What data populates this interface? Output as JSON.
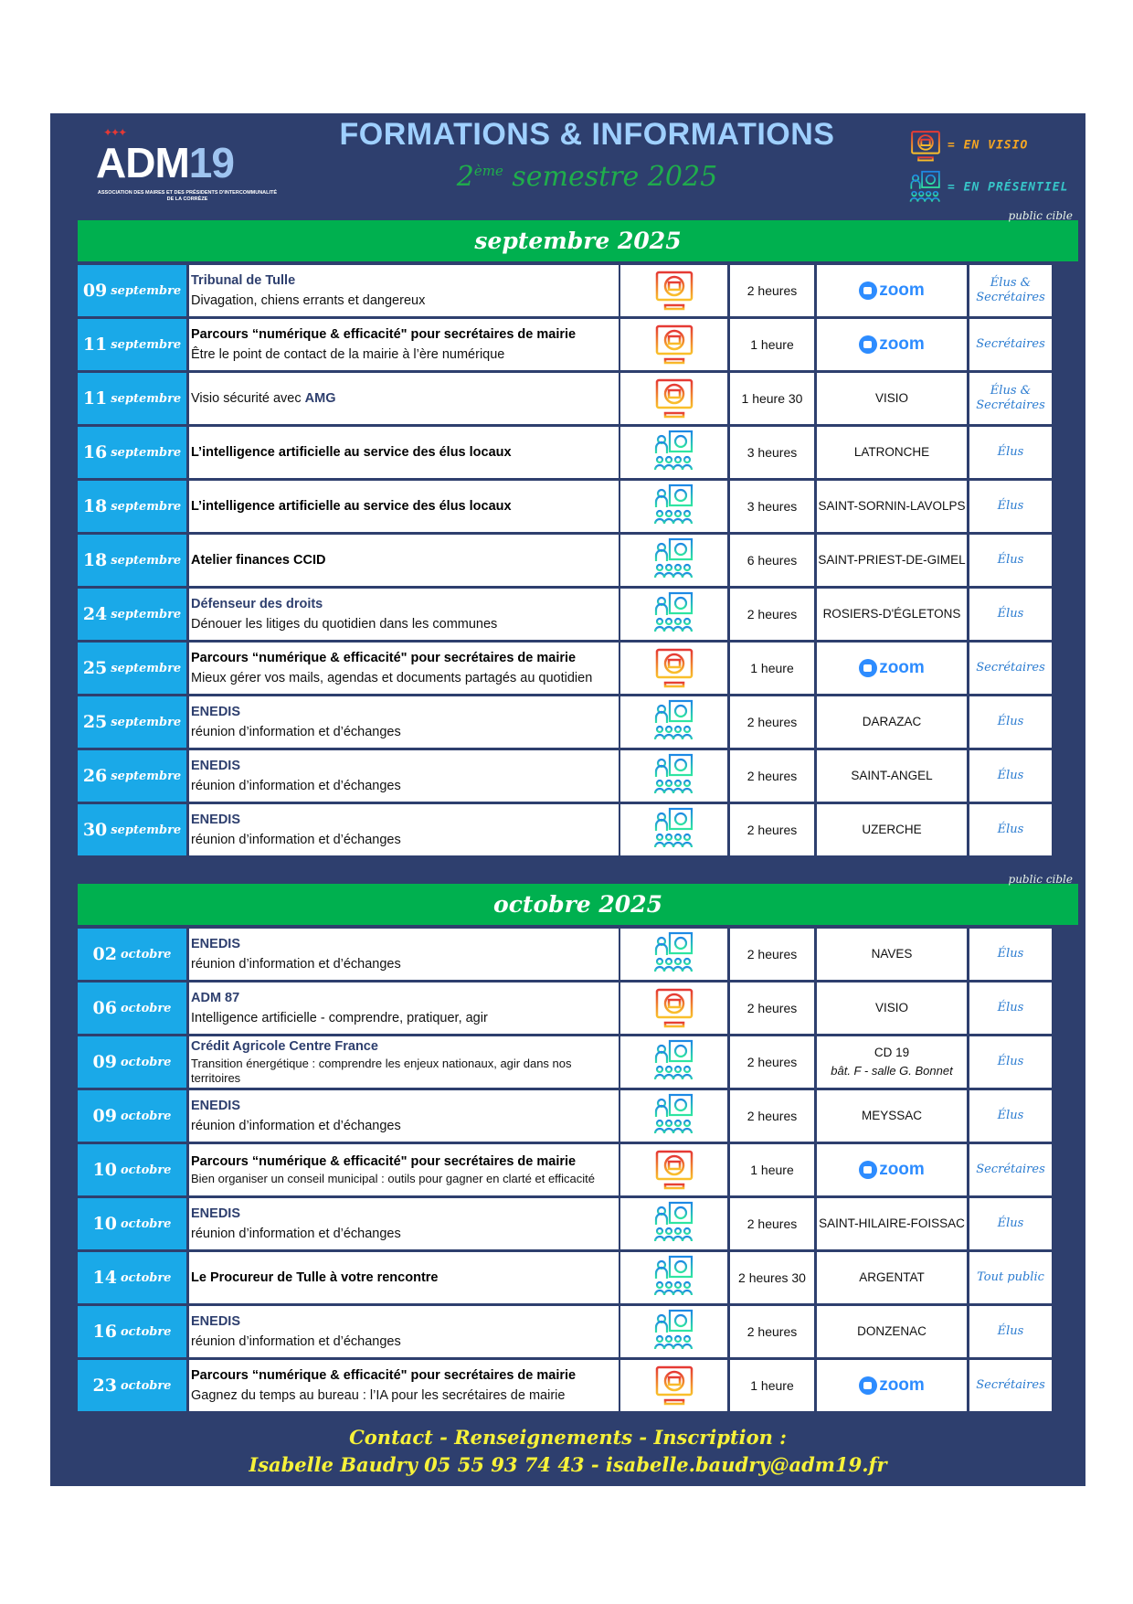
{
  "header": {
    "logo_text": "ADM19",
    "logo_subtext": "ASSOCIATION DES MAIRES ET DES PRÉSIDENTS D'INTERCOMMUNALITÉ DE LA CORRÈZE",
    "title": "FORMATIONS & INFORMATIONS",
    "subtitle_num": "2",
    "subtitle_sup": "ème",
    "subtitle_rest": " semestre 2025",
    "legend_visio": "= EN VISIO",
    "legend_presentiel": "= EN PRÉSENTIEL"
  },
  "colors": {
    "navy": "#2e3f6e",
    "green": "#00b04f",
    "date_blue": "#1aa9e8",
    "visio": "#f5a623",
    "presentiel": "#37c6c9",
    "contact": "#f7f23a"
  },
  "sections": [
    {
      "month": "septembre 2025",
      "public_label": "public cible",
      "rows": [
        {
          "day": "09",
          "month": "septembre",
          "title": "Tribunal de Tulle",
          "title_style": "org",
          "subtitle": "Divagation, chiens errants et dangereux",
          "mode": "visio",
          "duration": "2 heures",
          "lieu": "zoom",
          "public": "Élus & Secrétaires"
        },
        {
          "day": "11",
          "month": "septembre",
          "title": "Parcours “numérique & efficacité\" pour secrétaires de mairie",
          "title_style": "bold",
          "subtitle": "Être le point de contact de la mairie à l’ère numérique",
          "mode": "visio",
          "duration": "1 heure",
          "lieu": "zoom",
          "public": "Secrétaires"
        },
        {
          "day": "11",
          "month": "septembre",
          "lead": "Visio sécurité avec ",
          "title": "AMG",
          "title_style": "org",
          "mode": "visio",
          "duration": "1 heure 30",
          "lieu": "VISIO",
          "public": "Élus & Secrétaires"
        },
        {
          "day": "16",
          "month": "septembre",
          "title": "L’intelligence artificielle au service des élus locaux",
          "title_style": "bold",
          "mode": "presentiel",
          "duration": "3 heures",
          "lieu": "LATRONCHE",
          "public": "Élus"
        },
        {
          "day": "18",
          "month": "septembre",
          "title": "L’intelligence artificielle au service des élus locaux",
          "title_style": "bold",
          "mode": "presentiel",
          "duration": "3 heures",
          "lieu": "SAINT-SORNIN-LAVOLPS",
          "public": "Élus"
        },
        {
          "day": "18",
          "month": "septembre",
          "title": "Atelier finances CCID",
          "title_style": "bold",
          "mode": "presentiel",
          "duration": "6 heures",
          "lieu": "SAINT-PRIEST-DE-GIMEL",
          "public": "Élus"
        },
        {
          "day": "24",
          "month": "septembre",
          "title": "Défenseur des droits",
          "title_style": "org",
          "subtitle": "Dénouer les litiges du quotidien dans les communes",
          "mode": "presentiel",
          "duration": "2 heures",
          "lieu": "ROSIERS-D'ÉGLETONS",
          "public": "Élus"
        },
        {
          "day": "25",
          "month": "septembre",
          "title": "Parcours “numérique & efficacité\" pour secrétaires de mairie",
          "title_style": "bold",
          "subtitle": "Mieux gérer vos mails, agendas et documents partagés au quotidien",
          "mode": "visio",
          "duration": "1 heure",
          "lieu": "zoom",
          "public": "Secrétaires"
        },
        {
          "day": "25",
          "month": "septembre",
          "title": "ENEDIS",
          "title_style": "org",
          "subtitle": "réunion d’information et d’échanges",
          "mode": "presentiel",
          "duration": "2 heures",
          "lieu": "DARAZAC",
          "public": "Élus"
        },
        {
          "day": "26",
          "month": "septembre",
          "title": "ENEDIS",
          "title_style": "org",
          "subtitle": "réunion d’information et d’échanges",
          "mode": "presentiel",
          "duration": "2 heures",
          "lieu": "SAINT-ANGEL",
          "public": "Élus"
        },
        {
          "day": "30",
          "month": "septembre",
          "title": "ENEDIS",
          "title_style": "org",
          "subtitle": "réunion d’information et d’échanges",
          "mode": "presentiel",
          "duration": "2 heures",
          "lieu": "UZERCHE",
          "public": "Élus"
        }
      ]
    },
    {
      "month": "octobre 2025",
      "public_label": "public cible",
      "rows": [
        {
          "day": "02",
          "month": "octobre",
          "title": "ENEDIS",
          "title_style": "org",
          "subtitle": "réunion d’information et d’échanges",
          "mode": "presentiel",
          "duration": "2 heures",
          "lieu": "NAVES",
          "public": "Élus"
        },
        {
          "day": "06",
          "month": "octobre",
          "title": "ADM 87",
          "title_style": "org",
          "subtitle": "Intelligence artificielle - comprendre, pratiquer, agir",
          "mode": "visio",
          "duration": "2 heures",
          "lieu": "VISIO",
          "public": "Élus"
        },
        {
          "day": "09",
          "month": "octobre",
          "title": "Crédit Agricole Centre France",
          "title_style": "org",
          "subtitle": "Transition énergétique : comprendre les enjeux nationaux, agir dans nos territoires",
          "subtitle_small": true,
          "mode": "presentiel",
          "duration": "2 heures",
          "lieu": "CD 19",
          "lieu_detail": "bât. F - salle G. Bonnet",
          "public": "Élus"
        },
        {
          "day": "09",
          "month": "octobre",
          "title": "ENEDIS",
          "title_style": "org",
          "subtitle": "réunion d’information et d’échanges",
          "mode": "presentiel",
          "duration": "2 heures",
          "lieu": "MEYSSAC",
          "public": "Élus"
        },
        {
          "day": "10",
          "month": "octobre",
          "title": "Parcours “numérique & efficacité\" pour secrétaires de mairie",
          "title_style": "bold",
          "subtitle": "Bien organiser un conseil municipal : outils pour gagner en clarté et efficacité",
          "subtitle_small": true,
          "mode": "visio",
          "duration": "1 heure",
          "lieu": "zoom",
          "public": "Secrétaires"
        },
        {
          "day": "10",
          "month": "octobre",
          "title": "ENEDIS",
          "title_style": "org",
          "subtitle": "réunion d’information et d’échanges",
          "mode": "presentiel",
          "duration": "2 heures",
          "lieu": "SAINT-HILAIRE-FOISSAC",
          "public": "Élus"
        },
        {
          "day": "14",
          "month": "octobre",
          "title": "Le Procureur de Tulle à votre rencontre",
          "title_style": "bold",
          "mode": "presentiel",
          "duration": "2 heures 30",
          "lieu": "ARGENTAT",
          "public": "Tout public"
        },
        {
          "day": "16",
          "month": "octobre",
          "title": "ENEDIS",
          "title_style": "org",
          "subtitle": "réunion d’information et d’échanges",
          "mode": "presentiel",
          "duration": "2 heures",
          "lieu": "DONZENAC",
          "public": "Élus"
        },
        {
          "day": "23",
          "month": "octobre",
          "title": "Parcours “numérique & efficacité\" pour secrétaires de mairie",
          "title_style": "bold",
          "subtitle": "Gagnez du temps au bureau : l’IA pour les secrétaires de mairie",
          "mode": "visio",
          "duration": "1 heure",
          "lieu": "zoom",
          "public": "Secrétaires"
        }
      ]
    }
  ],
  "footer": {
    "line1": "Contact - Renseignements - Inscription :",
    "line2": "Isabelle Baudry 05 55 93 74 43 - isabelle.baudry@adm19.fr"
  }
}
